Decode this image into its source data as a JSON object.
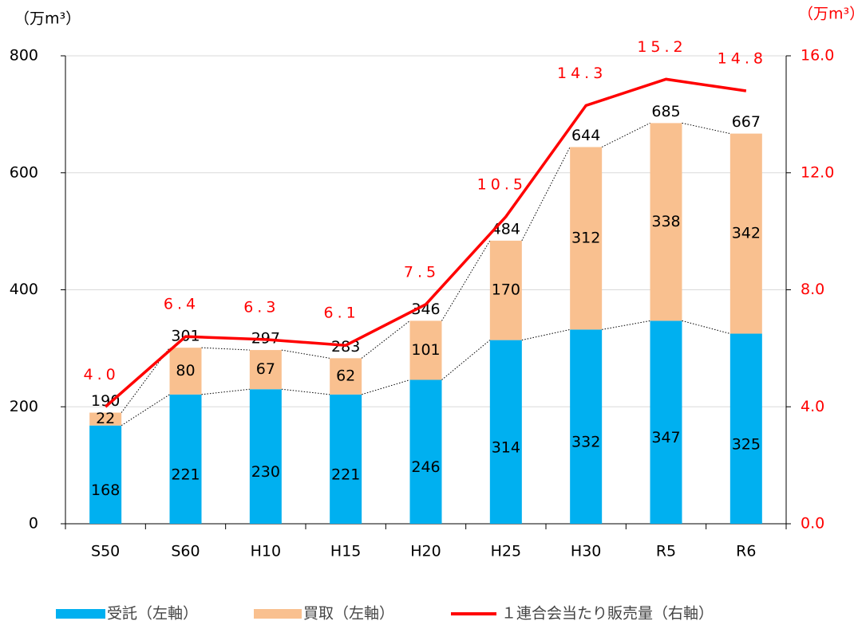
{
  "chart_data": {
    "type": "bar-line",
    "y_unit": "（万m³）",
    "y2_unit": "（万m³）",
    "categories": [
      "S50",
      "S60",
      "H10",
      "H15",
      "H20",
      "H25",
      "H30",
      "R5",
      "R6"
    ],
    "series": [
      {
        "name": "受託（左軸）",
        "color": "#00b0f0",
        "values": [
          168,
          221,
          230,
          221,
          246,
          314,
          332,
          347,
          325
        ]
      },
      {
        "name": "買取（左軸）",
        "color": "#f9c08f",
        "values": [
          22,
          80,
          67,
          62,
          101,
          170,
          312,
          338,
          342
        ]
      },
      {
        "name": "１連合会当たり販売量（右軸）",
        "color": "#ff0000",
        "axis": "y2",
        "values": [
          4.0,
          6.4,
          6.3,
          6.1,
          7.5,
          10.5,
          14.3,
          15.2,
          14.8
        ],
        "value_labels": [
          "4.0",
          "6.4",
          "6.3",
          "6.1",
          "7.5",
          "10.5",
          "14.3",
          "15.2",
          "14.8"
        ]
      }
    ],
    "totals": [
      190,
      301,
      297,
      283,
      346,
      484,
      644,
      685,
      667
    ],
    "ylim": [
      0,
      800
    ],
    "yticks": [
      0,
      200,
      400,
      600,
      800
    ],
    "y2lim": [
      0,
      16
    ],
    "y2ticks": [
      {
        "value": 0,
        "label": "0.0"
      },
      {
        "value": 4,
        "label": "4.0"
      },
      {
        "value": 8,
        "label": "8.0"
      },
      {
        "value": 12,
        "label": "12.0"
      },
      {
        "value": 16,
        "label": "16.0"
      }
    ],
    "grid": true
  }
}
